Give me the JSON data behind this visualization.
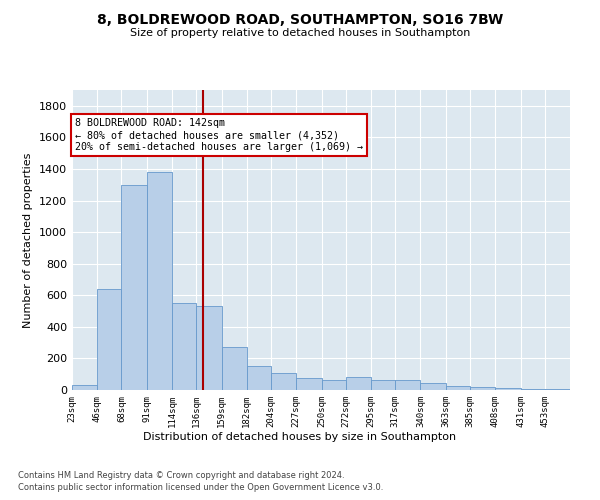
{
  "title1": "8, BOLDREWOOD ROAD, SOUTHAMPTON, SO16 7BW",
  "title2": "Size of property relative to detached houses in Southampton",
  "xlabel": "Distribution of detached houses by size in Southampton",
  "ylabel": "Number of detached properties",
  "annotation_line1": "8 BOLDREWOOD ROAD: 142sqm",
  "annotation_line2": "← 80% of detached houses are smaller (4,352)",
  "annotation_line3": "20% of semi-detached houses are larger (1,069) →",
  "property_size": 142,
  "footer1": "Contains HM Land Registry data © Crown copyright and database right 2024.",
  "footer2": "Contains public sector information licensed under the Open Government Licence v3.0.",
  "bar_color": "#b8cfe8",
  "bar_edge_color": "#6699cc",
  "annotation_box_color": "#cc0000",
  "vline_color": "#aa0000",
  "background_color": "#dde8f0",
  "bin_edges": [
    23,
    46,
    68,
    91,
    114,
    136,
    159,
    182,
    204,
    227,
    250,
    272,
    295,
    317,
    340,
    363,
    385,
    408,
    431,
    453,
    476
  ],
  "bin_values": [
    30,
    640,
    1300,
    1380,
    550,
    530,
    270,
    150,
    110,
    75,
    65,
    85,
    65,
    65,
    45,
    28,
    22,
    12,
    8,
    8
  ],
  "ylim": [
    0,
    1900
  ],
  "ytick_values": [
    0,
    200,
    400,
    600,
    800,
    1000,
    1200,
    1400,
    1600,
    1800
  ]
}
